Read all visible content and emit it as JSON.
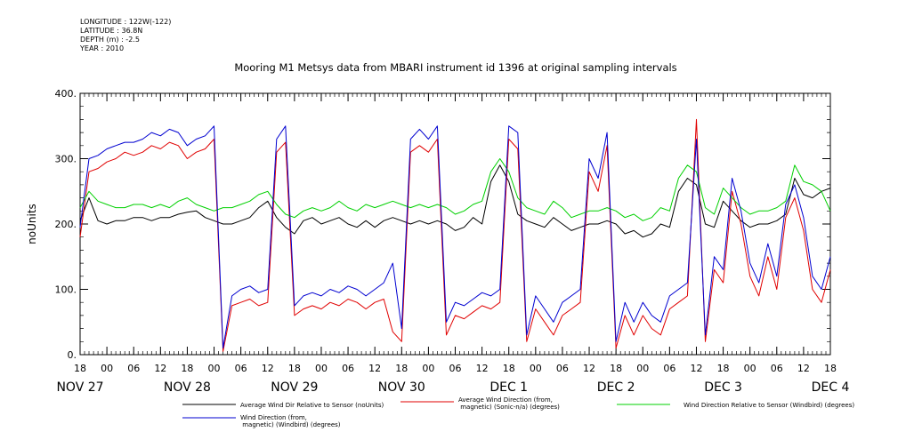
{
  "meta": {
    "longitude": "LONGITUDE : 122W(-122)",
    "latitude": "LATITUDE : 36.8N",
    "depth": "DEPTH (m) : -2.5",
    "year": "YEAR : 2010"
  },
  "chart_data": {
    "type": "line",
    "title": "Mooring M1 Metsys data from MBARI instrument id 1396 at original sampling intervals",
    "ylabel": "noUnits",
    "xlabel": "",
    "xlim": [
      0,
      168
    ],
    "ylim": [
      0,
      400
    ],
    "y_ticks": [
      0,
      100,
      200,
      300,
      400
    ],
    "y_tick_labels": [
      "0.",
      "100.",
      "200.",
      "300.",
      "400."
    ],
    "x_ticks": [
      0,
      6,
      12,
      18,
      24,
      30,
      36,
      42,
      48,
      54,
      60,
      66,
      72,
      78,
      84,
      90,
      96,
      102,
      108,
      114,
      120,
      126,
      132,
      138,
      144,
      150,
      156,
      162,
      168
    ],
    "x_tick_labels": [
      "18",
      "00",
      "06",
      "12",
      "18",
      "00",
      "06",
      "12",
      "18",
      "00",
      "06",
      "12",
      "18",
      "00",
      "06",
      "12",
      "18",
      "00",
      "06",
      "12",
      "18",
      "00",
      "06",
      "12",
      "18",
      "00",
      "06",
      "12",
      "18"
    ],
    "date_labels": [
      {
        "x": 0,
        "label": "NOV 27"
      },
      {
        "x": 24,
        "label": "NOV 28"
      },
      {
        "x": 48,
        "label": "NOV 29"
      },
      {
        "x": 72,
        "label": "NOV 30"
      },
      {
        "x": 96,
        "label": "DEC  1"
      },
      {
        "x": 120,
        "label": "DEC  2"
      },
      {
        "x": 144,
        "label": "DEC  3"
      },
      {
        "x": 168,
        "label": "DEC  4"
      }
    ],
    "grid": false,
    "series": [
      {
        "name": "Average Wind Dir Relative to Sensor (noUnits)",
        "color": "#000000",
        "x": [
          0,
          2,
          4,
          6,
          8,
          10,
          12,
          14,
          16,
          18,
          20,
          22,
          24,
          26,
          28,
          30,
          32,
          34,
          36,
          38,
          40,
          42,
          44,
          46,
          48,
          50,
          52,
          54,
          56,
          58,
          60,
          62,
          64,
          66,
          68,
          70,
          72,
          74,
          76,
          78,
          80,
          82,
          84,
          86,
          88,
          90,
          92,
          94,
          96,
          98,
          100,
          102,
          104,
          106,
          108,
          110,
          112,
          114,
          116,
          118,
          120,
          122,
          124,
          126,
          128,
          130,
          132,
          134,
          136,
          138,
          140,
          142,
          144,
          146,
          148,
          150,
          152,
          154,
          156,
          158,
          160,
          162,
          164,
          166,
          168
        ],
        "y": [
          205,
          240,
          205,
          200,
          205,
          205,
          210,
          210,
          205,
          210,
          210,
          215,
          218,
          220,
          210,
          205,
          200,
          200,
          205,
          210,
          225,
          235,
          210,
          195,
          185,
          205,
          210,
          200,
          205,
          210,
          200,
          195,
          205,
          195,
          205,
          210,
          205,
          200,
          205,
          200,
          205,
          200,
          190,
          195,
          210,
          200,
          265,
          290,
          265,
          215,
          205,
          200,
          195,
          210,
          200,
          190,
          195,
          200,
          200,
          205,
          200,
          185,
          190,
          180,
          185,
          200,
          195,
          250,
          270,
          260,
          200,
          195,
          235,
          220,
          205,
          195,
          200,
          200,
          205,
          215,
          270,
          245,
          240,
          250,
          255
        ]
      },
      {
        "name": "Average Wind Direction (from, magnetic) (Sonic-n/a) (degrees)",
        "color": "#e00000",
        "x": [
          0,
          2,
          4,
          6,
          8,
          10,
          12,
          14,
          16,
          18,
          20,
          22,
          24,
          26,
          28,
          30,
          32,
          34,
          36,
          38,
          40,
          42,
          44,
          46,
          48,
          50,
          52,
          54,
          56,
          58,
          60,
          62,
          64,
          66,
          68,
          70,
          72,
          74,
          76,
          78,
          80,
          82,
          84,
          86,
          88,
          90,
          92,
          94,
          96,
          98,
          100,
          102,
          104,
          106,
          108,
          110,
          112,
          114,
          116,
          118,
          120,
          122,
          124,
          126,
          128,
          130,
          132,
          134,
          136,
          138,
          140,
          142,
          144,
          146,
          148,
          150,
          152,
          154,
          156,
          158,
          160,
          162,
          164,
          166,
          168
        ],
        "y": [
          180,
          280,
          285,
          295,
          300,
          310,
          305,
          310,
          320,
          315,
          325,
          320,
          300,
          310,
          315,
          330,
          5,
          75,
          80,
          85,
          75,
          80,
          310,
          325,
          60,
          70,
          75,
          70,
          80,
          75,
          85,
          80,
          70,
          80,
          85,
          35,
          20,
          310,
          320,
          310,
          330,
          30,
          60,
          55,
          65,
          75,
          70,
          80,
          330,
          315,
          20,
          70,
          50,
          30,
          60,
          70,
          80,
          280,
          250,
          320,
          10,
          60,
          30,
          60,
          40,
          30,
          70,
          80,
          90,
          360,
          20,
          130,
          110,
          250,
          200,
          120,
          90,
          150,
          100,
          210,
          240,
          190,
          100,
          80,
          130
        ]
      },
      {
        "name": "Wind Direction Relative to Sensor (Windbird) (degrees)",
        "color": "#00d000",
        "x": [
          0,
          2,
          4,
          6,
          8,
          10,
          12,
          14,
          16,
          18,
          20,
          22,
          24,
          26,
          28,
          30,
          32,
          34,
          36,
          38,
          40,
          42,
          44,
          46,
          48,
          50,
          52,
          54,
          56,
          58,
          60,
          62,
          64,
          66,
          68,
          70,
          72,
          74,
          76,
          78,
          80,
          82,
          84,
          86,
          88,
          90,
          92,
          94,
          96,
          98,
          100,
          102,
          104,
          106,
          108,
          110,
          112,
          114,
          116,
          118,
          120,
          122,
          124,
          126,
          128,
          130,
          132,
          134,
          136,
          138,
          140,
          142,
          144,
          146,
          148,
          150,
          152,
          154,
          156,
          158,
          160,
          162,
          164,
          166,
          168
        ],
        "y": [
          225,
          250,
          235,
          230,
          225,
          225,
          230,
          230,
          225,
          230,
          225,
          235,
          240,
          230,
          225,
          220,
          225,
          225,
          230,
          235,
          245,
          250,
          230,
          215,
          210,
          220,
          225,
          220,
          225,
          235,
          225,
          220,
          230,
          225,
          230,
          235,
          230,
          225,
          230,
          225,
          230,
          225,
          215,
          220,
          230,
          235,
          280,
          300,
          280,
          240,
          225,
          220,
          215,
          235,
          225,
          210,
          215,
          220,
          220,
          225,
          220,
          210,
          215,
          205,
          210,
          225,
          220,
          270,
          290,
          280,
          225,
          215,
          255,
          240,
          225,
          215,
          220,
          220,
          225,
          235,
          290,
          265,
          260,
          250,
          220
        ]
      },
      {
        "name": "Wind Direction (from, magnetic) (Windbird) (degrees)",
        "color": "#0000d0",
        "x": [
          0,
          2,
          4,
          6,
          8,
          10,
          12,
          14,
          16,
          18,
          20,
          22,
          24,
          26,
          28,
          30,
          32,
          34,
          36,
          38,
          40,
          42,
          44,
          46,
          48,
          50,
          52,
          54,
          56,
          58,
          60,
          62,
          64,
          66,
          68,
          70,
          72,
          74,
          76,
          78,
          80,
          82,
          84,
          86,
          88,
          90,
          92,
          94,
          96,
          98,
          100,
          102,
          104,
          106,
          108,
          110,
          112,
          114,
          116,
          118,
          120,
          122,
          124,
          126,
          128,
          130,
          132,
          134,
          136,
          138,
          140,
          142,
          144,
          146,
          148,
          150,
          152,
          154,
          156,
          158,
          160,
          162,
          164,
          166,
          168
        ],
        "y": [
          195,
          300,
          305,
          315,
          320,
          325,
          325,
          330,
          340,
          335,
          345,
          340,
          320,
          330,
          335,
          350,
          10,
          90,
          100,
          105,
          95,
          100,
          330,
          350,
          75,
          90,
          95,
          90,
          100,
          95,
          105,
          100,
          90,
          100,
          110,
          140,
          40,
          330,
          345,
          330,
          350,
          50,
          80,
          75,
          85,
          95,
          90,
          100,
          350,
          340,
          30,
          90,
          70,
          50,
          80,
          90,
          100,
          300,
          270,
          340,
          20,
          80,
          50,
          80,
          60,
          50,
          90,
          100,
          110,
          330,
          30,
          150,
          130,
          270,
          220,
          140,
          110,
          170,
          120,
          230,
          260,
          210,
          120,
          100,
          150
        ]
      }
    ],
    "legend_placement": "bottom"
  }
}
